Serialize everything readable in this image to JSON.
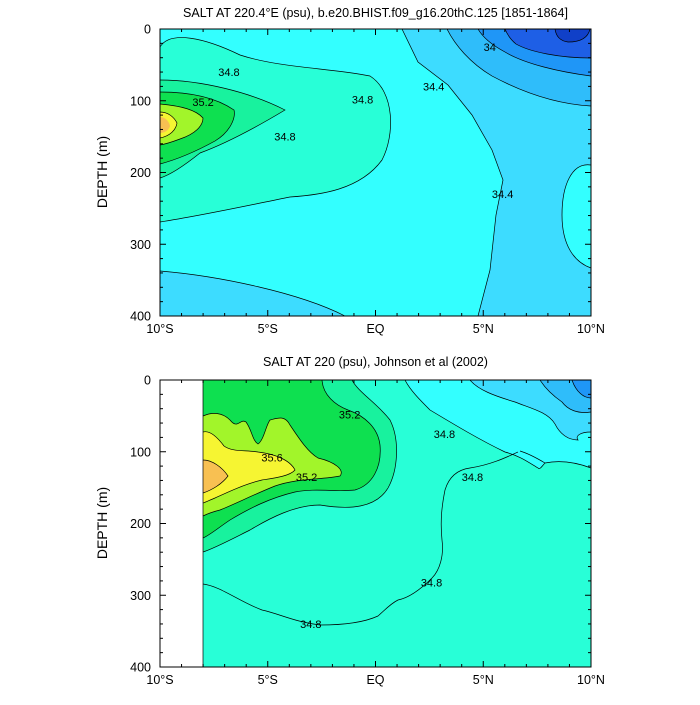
{
  "chart_data": [
    {
      "type": "heatmap",
      "title": "SALT AT 220.4°E (psu), b.e20.BHIST.f09_g16.20thC.125 [1851-1864]",
      "ylabel": "DEPTH (m)",
      "xlabel": "",
      "xlim": [
        -10,
        10
      ],
      "ylim": [
        400,
        0
      ],
      "y_inverted": true,
      "x_ticks": [
        {
          "value": -10,
          "label": "10°S"
        },
        {
          "value": -5,
          "label": "5°S"
        },
        {
          "value": 0,
          "label": "EQ"
        },
        {
          "value": 5,
          "label": "5°N"
        },
        {
          "value": 10,
          "label": "10°N"
        }
      ],
      "y_ticks": [
        0,
        100,
        200,
        300,
        400
      ],
      "contour_labels": [
        {
          "text": "34.8",
          "lat": -6.8,
          "depth": 60
        },
        {
          "text": "35.2",
          "lat": -8.0,
          "depth": 102
        },
        {
          "text": "34.8",
          "lat": -4.2,
          "depth": 150
        },
        {
          "text": "34.8",
          "lat": -0.6,
          "depth": 98
        },
        {
          "text": "34.4",
          "lat": 2.7,
          "depth": 80
        },
        {
          "text": "34",
          "lat": 5.3,
          "depth": 25
        },
        {
          "text": "34.4",
          "lat": 5.9,
          "depth": 230
        }
      ]
    },
    {
      "type": "heatmap",
      "title": "SALT AT 220 (psu), Johnson et al (2002)",
      "ylabel": "DEPTH (m)",
      "xlabel": "",
      "xlim": [
        -10,
        10
      ],
      "ylim": [
        400,
        0
      ],
      "y_inverted": true,
      "data_range_lat": [
        -8,
        10
      ],
      "x_ticks": [
        {
          "value": -10,
          "label": "10°S"
        },
        {
          "value": -5,
          "label": "5°S"
        },
        {
          "value": 0,
          "label": "EQ"
        },
        {
          "value": 5,
          "label": "5°N"
        },
        {
          "value": 10,
          "label": "10°N"
        }
      ],
      "y_ticks": [
        0,
        100,
        200,
        300,
        400
      ],
      "contour_labels": [
        {
          "text": "35.2",
          "lat": -1.2,
          "depth": 48
        },
        {
          "text": "35.6",
          "lat": -4.8,
          "depth": 108
        },
        {
          "text": "35.2",
          "lat": -3.2,
          "depth": 135
        },
        {
          "text": "34.8",
          "lat": 3.2,
          "depth": 75
        },
        {
          "text": "34.8",
          "lat": 4.5,
          "depth": 135
        },
        {
          "text": "34.8",
          "lat": 2.6,
          "depth": 282
        },
        {
          "text": "34.8",
          "lat": -3.0,
          "depth": 340
        }
      ]
    }
  ],
  "colors": {
    "c33_8": "#1e5fe6",
    "c34_0": "#1f96f7",
    "c34_2": "#2fbdfa",
    "c34_4": "#3ddcff",
    "c34_6": "#33ffff",
    "c34_8": "#28ffd7",
    "c35_0": "#18f29e",
    "c35_2": "#0ee050",
    "c35_4": "#a2f52a",
    "c35_6": "#f6f532",
    "c35_8": "#f8c052"
  }
}
